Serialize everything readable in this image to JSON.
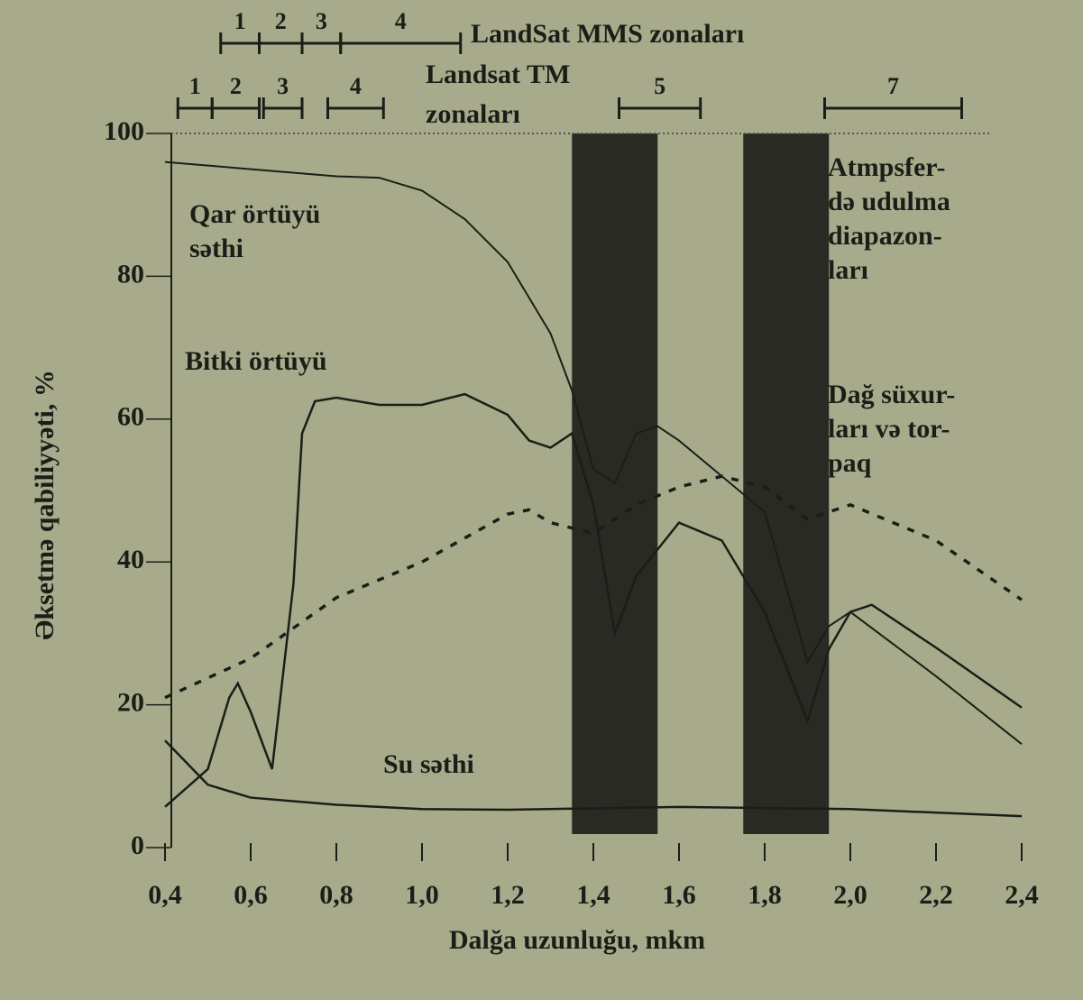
{
  "chart_data": {
    "type": "line",
    "x_label": "Dalğa uzunluğu, mkm",
    "y_label": "Əksetmə qabiliyyəti, %",
    "xlim": [
      0.4,
      2.4
    ],
    "ylim": [
      0,
      100
    ],
    "xticks": [
      {
        "value": 0.4,
        "label": "0,4"
      },
      {
        "value": 0.6,
        "label": "0,6"
      },
      {
        "value": 0.8,
        "label": "0,8"
      },
      {
        "value": 1.0,
        "label": "1,0"
      },
      {
        "value": 1.2,
        "label": "1,2"
      },
      {
        "value": 1.4,
        "label": "1,4"
      },
      {
        "value": 1.6,
        "label": "1,6"
      },
      {
        "value": 1.8,
        "label": "1,8"
      },
      {
        "value": 2.0,
        "label": "2,0"
      },
      {
        "value": 2.2,
        "label": "2,2"
      },
      {
        "value": 2.4,
        "label": "2,4"
      }
    ],
    "yticks": [
      0,
      20,
      40,
      60,
      80,
      100
    ],
    "series": [
      {
        "name": [
          "Qar örtüyü",
          "səthi"
        ],
        "color": "#1d1d18",
        "style": "solid",
        "width": 2,
        "x": [
          0.4,
          0.6,
          0.8,
          0.9,
          1.0,
          1.1,
          1.2,
          1.3,
          1.35,
          1.4,
          1.45,
          1.5,
          1.55,
          1.6,
          1.7,
          1.8,
          1.9,
          1.95,
          2.0,
          2.2,
          2.4
        ],
        "values": [
          96,
          95,
          94,
          93.8,
          92,
          88,
          82,
          72,
          64,
          53,
          51,
          58,
          59,
          57,
          52,
          47,
          26,
          31,
          33,
          24,
          14.5
        ]
      },
      {
        "name": [
          "Bitki örtüyü"
        ],
        "color": "#1d1d18",
        "style": "solid",
        "width": 2.5,
        "x": [
          0.4,
          0.5,
          0.55,
          0.57,
          0.6,
          0.65,
          0.7,
          0.72,
          0.75,
          0.8,
          0.9,
          1.0,
          1.1,
          1.2,
          1.25,
          1.3,
          1.35,
          1.4,
          1.45,
          1.5,
          1.6,
          1.7,
          1.8,
          1.9,
          1.95,
          2.0,
          2.05,
          2.2,
          2.4
        ],
        "values": [
          5.7,
          11,
          21,
          23,
          19,
          11,
          37,
          58,
          62.5,
          63,
          62,
          62,
          63.5,
          60.6,
          57,
          56,
          58,
          48,
          30,
          38,
          45.5,
          43,
          33,
          17.7,
          27.8,
          33,
          34,
          28,
          19.6
        ]
      },
      {
        "name": [
          "Dağ süxur-",
          "ları və tor-",
          "paq"
        ],
        "color": "#1d1d18",
        "style": "dashed",
        "width": 3.5,
        "x": [
          0.4,
          0.6,
          0.8,
          1.0,
          1.2,
          1.25,
          1.3,
          1.4,
          1.5,
          1.6,
          1.7,
          1.8,
          1.9,
          2.0,
          2.2,
          2.4
        ],
        "values": [
          21,
          26.5,
          35,
          40,
          46.7,
          47.3,
          45.5,
          44,
          48,
          50.5,
          52,
          50.5,
          46,
          48,
          43,
          34.7
        ]
      },
      {
        "name": [
          "Su səthi"
        ],
        "color": "#1d1d18",
        "style": "solid",
        "width": 2.5,
        "x": [
          0.4,
          0.5,
          0.6,
          0.8,
          1.0,
          1.2,
          1.6,
          2.0,
          2.4
        ],
        "values": [
          15,
          8.8,
          7,
          6,
          5.4,
          5.3,
          5.7,
          5.4,
          4.4
        ]
      }
    ],
    "absorption_bands": {
      "label": [
        "Atmpsfer-",
        "də udulma",
        "diapazon-",
        "ları"
      ],
      "color": "#2a2a24",
      "ranges": [
        [
          1.35,
          1.55
        ],
        [
          1.75,
          1.95
        ]
      ]
    },
    "zones": [
      {
        "title": [
          "LandSat MMS zonaları"
        ],
        "bands": [
          {
            "label": "1",
            "range": [
              0.53,
              0.62
            ]
          },
          {
            "label": "2",
            "range": [
              0.62,
              0.72
            ]
          },
          {
            "label": "3",
            "range": [
              0.72,
              0.81
            ]
          },
          {
            "label": "4",
            "range": [
              0.81,
              1.09
            ]
          }
        ]
      },
      {
        "title": [
          "Landsat TM",
          "zonaları"
        ],
        "bands": [
          {
            "label": "1",
            "range": [
              0.43,
              0.51
            ]
          },
          {
            "label": "2",
            "range": [
              0.51,
              0.62
            ]
          },
          {
            "label": "3",
            "range": [
              0.63,
              0.72
            ]
          },
          {
            "label": "4",
            "range": [
              0.78,
              0.91
            ]
          },
          {
            "label": "5",
            "range": [
              1.46,
              1.65
            ]
          },
          {
            "label": "7",
            "range": [
              1.94,
              2.26
            ]
          }
        ]
      }
    ]
  }
}
